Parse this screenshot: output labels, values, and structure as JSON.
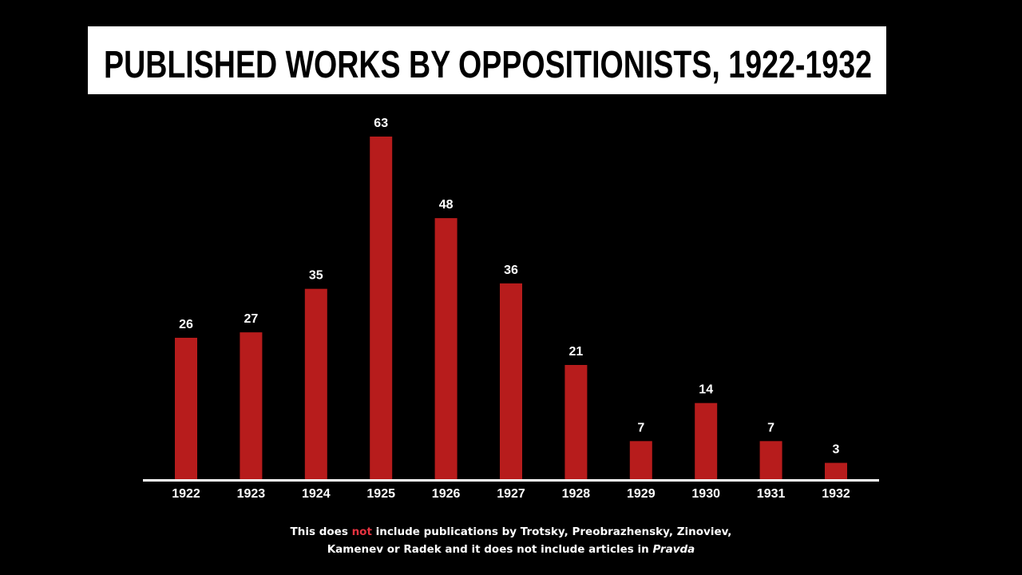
{
  "chart_data": {
    "type": "bar",
    "title": "PUBLISHED WORKS BY OPPOSITIONISTS, 1922-1932",
    "categories": [
      "1922",
      "1923",
      "1924",
      "1925",
      "1926",
      "1927",
      "1928",
      "1929",
      "1930",
      "1931",
      "1932"
    ],
    "values": [
      26,
      27,
      35,
      63,
      48,
      36,
      21,
      7,
      14,
      7,
      3
    ],
    "xlabel": "",
    "ylabel": "",
    "ylim": [
      0,
      63
    ],
    "grid": false,
    "data_labels": true,
    "colors": {
      "bar": "#b71c1c",
      "background": "#000000",
      "text": "#ffffff",
      "highlight": "#e53340"
    }
  },
  "footnote": {
    "line1_before": "This does ",
    "line1_highlight": "not",
    "line1_after": " include publications by Trotsky, Preobrazhensky, Zinoviev,",
    "line2_before": "Kamenev or Radek and it does not include articles in ",
    "line2_italic": "Pravda"
  }
}
